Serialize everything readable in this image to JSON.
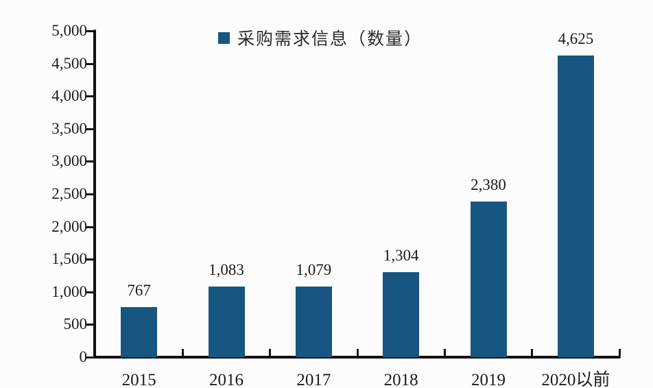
{
  "chart_data": {
    "type": "bar",
    "title": "",
    "legend": [
      {
        "label": "采购需求信息（数量）",
        "color": "#165681"
      }
    ],
    "legend_position": "top",
    "categories": [
      "2015",
      "2016",
      "2017",
      "2018",
      "2019",
      "2020以前"
    ],
    "values": [
      767,
      1083,
      1079,
      1304,
      2380,
      4625
    ],
    "value_labels": [
      "767",
      "1,083",
      "1,079",
      "1,304",
      "2,380",
      "4,625"
    ],
    "xlabel": "",
    "ylabel": "",
    "ylim": [
      0,
      5000
    ],
    "ytick_step": 500,
    "ytick_labels": [
      "0",
      "500",
      "1,000",
      "1,500",
      "2,000",
      "2,500",
      "3,000",
      "3,500",
      "4,000",
      "4,500",
      "5,000"
    ],
    "grid": false,
    "bar_color": "#165681",
    "axis_color": "#111111",
    "text_color": "#1c1c1c",
    "background_color": "#fcfcfc"
  }
}
